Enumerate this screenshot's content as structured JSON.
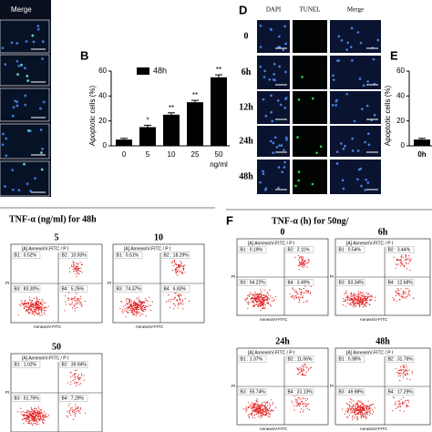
{
  "panel_a": {
    "header": "Merge"
  },
  "panel_d": {
    "label": "D",
    "columns": [
      "DAPI",
      "TUNEL",
      "Merge"
    ],
    "rows": [
      "0",
      "6h",
      "12h",
      "24h",
      "48h"
    ]
  },
  "chart_data": [
    {
      "type": "bar",
      "panel_label": "B",
      "categories": [
        "0",
        "5",
        "10",
        "25",
        "50"
      ],
      "series": [
        {
          "name": "48h",
          "color": "#000000",
          "values": [
            5,
            15,
            25,
            35,
            55
          ],
          "errors": [
            1,
            1.5,
            1.5,
            1.5,
            2
          ]
        }
      ],
      "annotations": [
        null,
        "*",
        "**",
        "**",
        "**"
      ],
      "x_label": "ng/ml",
      "y_label": "Apoptotic cells (%)",
      "ylim": [
        0,
        60
      ],
      "yticks": [
        0,
        20,
        40,
        60
      ]
    },
    {
      "type": "bar",
      "panel_label": "E",
      "categories": [
        "0h"
      ],
      "series": [
        {
          "color": "#000000",
          "values": [
            5
          ],
          "errors": [
            1
          ]
        }
      ],
      "y_label": "Apoptotic cells (%)",
      "ylim": [
        0,
        60
      ],
      "yticks": [
        0,
        20,
        40,
        60
      ]
    }
  ],
  "flow_left": {
    "title": "TNF-α (ng/ml) for 48h",
    "plots": [
      {
        "label": "5",
        "header": "[A] AnnexinV-FITC / P I",
        "x_label": "AnnexinV-FITC",
        "y_label": "PI",
        "quadrants": [
          "B1 : 0.52%",
          "B2 : 10.93%",
          "B3 : 83.30%",
          "B4 : 5.25%"
        ]
      },
      {
        "label": "10",
        "header": "[A] AnnexinV-FITC / P I",
        "x_label": "AnnexinV-FITC",
        "y_label": "PI",
        "quadrants": [
          "B1 : 0.51%",
          "B2 : 18.29%",
          "B3 : 74.37%",
          "B4 : 6.83%"
        ]
      },
      {
        "label": "50",
        "header": "[A] AnnexinV-FITC / P I",
        "x_label": "AnnexinV-FITC",
        "y_label": "PI",
        "quadrants": [
          "B1 : 1.02%",
          "B2 : 39.94%",
          "B3 : 51.76%",
          "B4 : 7.29%"
        ]
      }
    ]
  },
  "flow_right": {
    "label": "F",
    "title": "TNF-α (h) for 50ng/",
    "plots": [
      {
        "label": "0",
        "header": "[A] AnnexinV-FITC / P I",
        "x_label": "AnnexinV-FITC",
        "y_label": "PI",
        "quadrants": [
          "B1 : 0.19%",
          "B2 : 2.11%",
          "B3 : 94.22%",
          "B4 : 3.49%"
        ]
      },
      {
        "label": "6h",
        "header": "[A] AnnexinV-FITC / P I",
        "x_label": "AnnexinV-FITC",
        "y_label": "PI",
        "quadrants": [
          "B1 : 0.54%",
          "B2 : 3.44%",
          "B3 : 83.34%",
          "B4 : 12.68%"
        ]
      },
      {
        "label": "24h",
        "header": "[A] AnnexinV-FITC / P I",
        "x_label": "AnnexinV-FITC",
        "y_label": "PI",
        "quadrants": [
          "B1 : 1.37%",
          "B2 : 11.06%",
          "B3 : 55.74%",
          "B4 : 31.13%"
        ]
      },
      {
        "label": "48h",
        "header": "[A] AnnexinV-FITC / P I",
        "x_label": "AnnexinV-FITC",
        "y_label": "PI",
        "quadrants": [
          "B1 : 0.98%",
          "B2 : 31.76%",
          "B3 : 49.98%",
          "B4 : 17.29%"
        ]
      }
    ]
  }
}
